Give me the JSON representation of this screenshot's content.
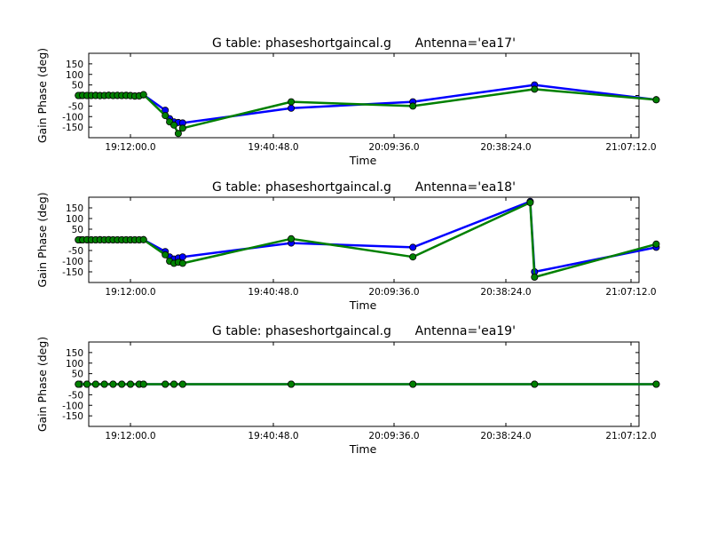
{
  "chart_data": [
    {
      "type": "line",
      "title": "G table: phaseshortgaincal.g      Antenna='ea17'",
      "xlabel": "Time",
      "ylabel": "Gain Phase (deg)",
      "xticks": [
        "19:12:00.0",
        "19:40:48.0",
        "20:09:36.0",
        "20:38:24.0",
        "21:07:12.0"
      ],
      "yticks": [
        "150",
        "100",
        "50",
        "0",
        "-50",
        "-100",
        "-150"
      ],
      "ylim": [
        -200,
        200
      ],
      "colors": {
        "blue": "#0000ff",
        "green": "#008000"
      },
      "x": [
        "19:00:00",
        "19:01:00",
        "19:02:00",
        "19:03:00",
        "19:04:00",
        "19:05:00",
        "19:06:00",
        "19:07:00",
        "19:08:00",
        "19:09:00",
        "19:10:00",
        "19:11:00",
        "19:12:00",
        "19:13:00",
        "19:14:00",
        "19:15:00",
        "19:20:00",
        "19:21:00",
        "19:22:00",
        "19:23:00",
        "19:24:00",
        "19:49:00",
        "20:17:00",
        "20:45:00",
        "21:13:00"
      ],
      "series": [
        {
          "values": [
            0,
            0,
            0,
            0,
            1,
            0,
            0,
            1,
            0,
            0,
            0,
            1,
            0,
            -2,
            -1,
            3,
            -70,
            -110,
            -125,
            -128,
            -130,
            -60,
            -30,
            50,
            -20
          ]
        },
        {
          "values": [
            0,
            1,
            0,
            0,
            0,
            -1,
            0,
            1,
            0,
            1,
            0,
            0,
            -1,
            -3,
            -2,
            4,
            -95,
            -125,
            -140,
            -180,
            -155,
            -30,
            -50,
            30,
            -20
          ]
        }
      ]
    },
    {
      "type": "line",
      "title": "G table: phaseshortgaincal.g      Antenna='ea18'",
      "xlabel": "Time",
      "ylabel": "Gain Phase (deg)",
      "xticks": [
        "19:12:00.0",
        "19:40:48.0",
        "20:09:36.0",
        "20:38:24.0",
        "21:07:12.0"
      ],
      "yticks": [
        "150",
        "100",
        "50",
        "0",
        "-50",
        "-100",
        "-150"
      ],
      "ylim": [
        -200,
        200
      ],
      "colors": {
        "blue": "#0000ff",
        "green": "#008000"
      },
      "x": [
        "19:00:00",
        "19:01:00",
        "19:02:00",
        "19:03:00",
        "19:04:00",
        "19:05:00",
        "19:06:00",
        "19:07:00",
        "19:08:00",
        "19:09:00",
        "19:10:00",
        "19:11:00",
        "19:12:00",
        "19:13:00",
        "19:14:00",
        "19:15:00",
        "19:20:00",
        "19:21:00",
        "19:22:00",
        "19:23:00",
        "19:24:00",
        "19:49:00",
        "20:17:00",
        "20:44:00",
        "20:45:00",
        "21:13:00"
      ],
      "series": [
        {
          "values": [
            0,
            0,
            0,
            0,
            0,
            1,
            0,
            0,
            0,
            0,
            0,
            0,
            0,
            0,
            0,
            1,
            -55,
            -80,
            -90,
            -85,
            -80,
            -15,
            -35,
            180,
            -150,
            -35
          ]
        },
        {
          "values": [
            0,
            0,
            1,
            0,
            0,
            0,
            0,
            1,
            0,
            0,
            0,
            0,
            0,
            0,
            0,
            1,
            -70,
            -100,
            -110,
            -105,
            -110,
            5,
            -80,
            175,
            -175,
            -20
          ]
        }
      ]
    },
    {
      "type": "line",
      "title": "G table: phaseshortgaincal.g      Antenna='ea19'",
      "xlabel": "Time",
      "ylabel": "Gain Phase (deg)",
      "xticks": [
        "19:12:00.0",
        "19:40:48.0",
        "20:09:36.0",
        "20:38:24.0",
        "21:07:12.0"
      ],
      "yticks": [
        "150",
        "100",
        "50",
        "0",
        "-50",
        "-100",
        "-150"
      ],
      "ylim": [
        -200,
        200
      ],
      "colors": {
        "blue": "#0000ff",
        "green": "#008000"
      },
      "x": [
        "19:00:00",
        "19:02:00",
        "19:04:00",
        "19:06:00",
        "19:08:00",
        "19:10:00",
        "19:12:00",
        "19:14:00",
        "19:15:00",
        "19:20:00",
        "19:22:00",
        "19:24:00",
        "19:49:00",
        "20:17:00",
        "20:45:00",
        "21:13:00"
      ],
      "series": [
        {
          "values": [
            0,
            0,
            0,
            0,
            0,
            0,
            0,
            0,
            0,
            0,
            0,
            0,
            0,
            0,
            0,
            0
          ]
        },
        {
          "values": [
            0,
            0,
            0,
            0,
            0,
            0,
            0,
            0,
            0,
            0,
            0,
            0,
            0,
            0,
            0,
            0
          ]
        }
      ]
    }
  ]
}
